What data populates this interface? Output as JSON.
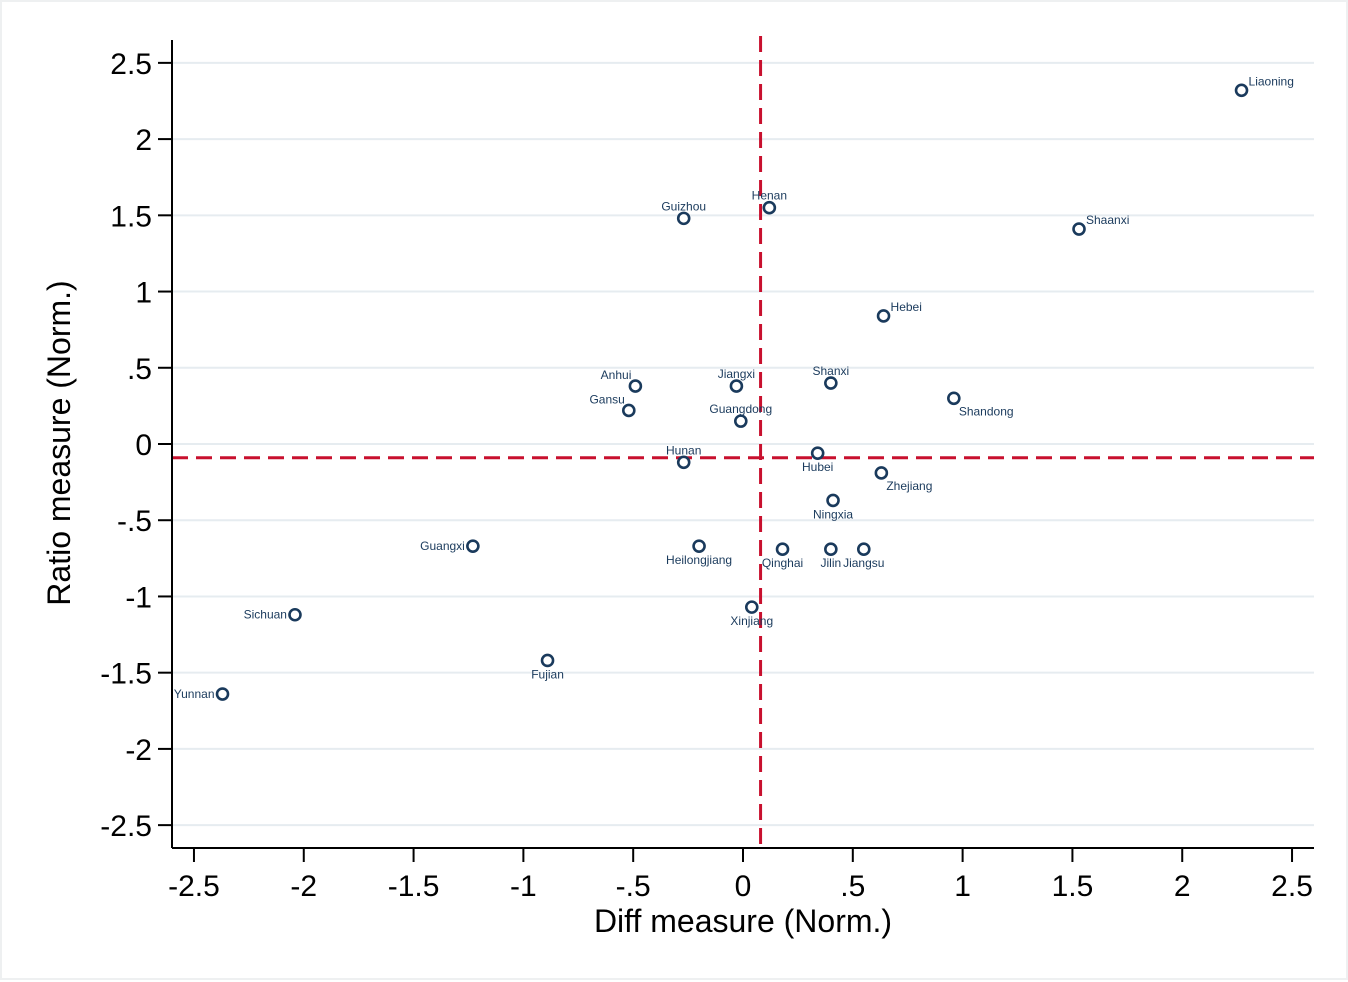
{
  "chart_data": {
    "type": "scatter",
    "xlabel": "Diff measure (Norm.)",
    "ylabel": "Ratio measure (Norm.)",
    "xlim": [
      -2.6,
      2.6
    ],
    "ylim": [
      -2.65,
      2.65
    ],
    "x_ticks": [
      -2.5,
      -2,
      -1.5,
      -1,
      -0.5,
      0,
      0.5,
      1,
      1.5,
      2,
      2.5
    ],
    "x_tick_labels": [
      "-2.5",
      "-2",
      "-1.5",
      "-1",
      "-.5",
      "0",
      ".5",
      "1",
      "1.5",
      "2",
      "2.5"
    ],
    "y_ticks": [
      2.5,
      2,
      1.5,
      1,
      0.5,
      0,
      -0.5,
      -1,
      -1.5,
      -2,
      -2.5
    ],
    "y_tick_labels": [
      "2.5",
      "2",
      "1.5",
      "1",
      ".5",
      "0",
      "-.5",
      "-1",
      "-1.5",
      "-2",
      "-2.5"
    ],
    "grid": "horizontal",
    "reference_lines": {
      "x": 0.08,
      "y": -0.09,
      "color": "#c8102e",
      "style": "dashed"
    },
    "marker_color": "#1a3a5c",
    "points": [
      {
        "name": "Liaoning",
        "x": 2.27,
        "y": 2.32,
        "label_pos": "upper-right"
      },
      {
        "name": "Shaanxi",
        "x": 1.53,
        "y": 1.41,
        "label_pos": "upper-right"
      },
      {
        "name": "Henan",
        "x": 0.12,
        "y": 1.55,
        "label_pos": "above"
      },
      {
        "name": "Guizhou",
        "x": -0.27,
        "y": 1.48,
        "label_pos": "above"
      },
      {
        "name": "Hebei",
        "x": 0.64,
        "y": 0.84,
        "label_pos": "upper-right"
      },
      {
        "name": "Anhui",
        "x": -0.49,
        "y": 0.38,
        "label_pos": "upper-left"
      },
      {
        "name": "Jiangxi",
        "x": -0.03,
        "y": 0.38,
        "label_pos": "above"
      },
      {
        "name": "Shanxi",
        "x": 0.4,
        "y": 0.4,
        "label_pos": "above"
      },
      {
        "name": "Shandong",
        "x": 0.96,
        "y": 0.3,
        "label_pos": "lower-right"
      },
      {
        "name": "Gansu",
        "x": -0.52,
        "y": 0.22,
        "label_pos": "upper-left"
      },
      {
        "name": "Guangdong",
        "x": -0.01,
        "y": 0.15,
        "label_pos": "above"
      },
      {
        "name": "Hunan",
        "x": -0.27,
        "y": -0.12,
        "label_pos": "above"
      },
      {
        "name": "Hubei",
        "x": 0.34,
        "y": -0.06,
        "label_pos": "below"
      },
      {
        "name": "Zhejiang",
        "x": 0.63,
        "y": -0.19,
        "label_pos": "lower-right"
      },
      {
        "name": "Ningxia",
        "x": 0.41,
        "y": -0.37,
        "label_pos": "below"
      },
      {
        "name": "Guangxi",
        "x": -1.23,
        "y": -0.67,
        "label_pos": "left"
      },
      {
        "name": "Heilongjiang",
        "x": -0.2,
        "y": -0.67,
        "label_pos": "below"
      },
      {
        "name": "Qinghai",
        "x": 0.18,
        "y": -0.69,
        "label_pos": "below"
      },
      {
        "name": "Jilin",
        "x": 0.4,
        "y": -0.69,
        "label_pos": "below"
      },
      {
        "name": "Jiangsu",
        "x": 0.55,
        "y": -0.69,
        "label_pos": "below"
      },
      {
        "name": "Xinjiang",
        "x": 0.04,
        "y": -1.07,
        "label_pos": "below"
      },
      {
        "name": "Sichuan",
        "x": -2.04,
        "y": -1.12,
        "label_pos": "left"
      },
      {
        "name": "Fujian",
        "x": -0.89,
        "y": -1.42,
        "label_pos": "below"
      },
      {
        "name": "Yunnan",
        "x": -2.37,
        "y": -1.64,
        "label_pos": "left"
      }
    ]
  }
}
